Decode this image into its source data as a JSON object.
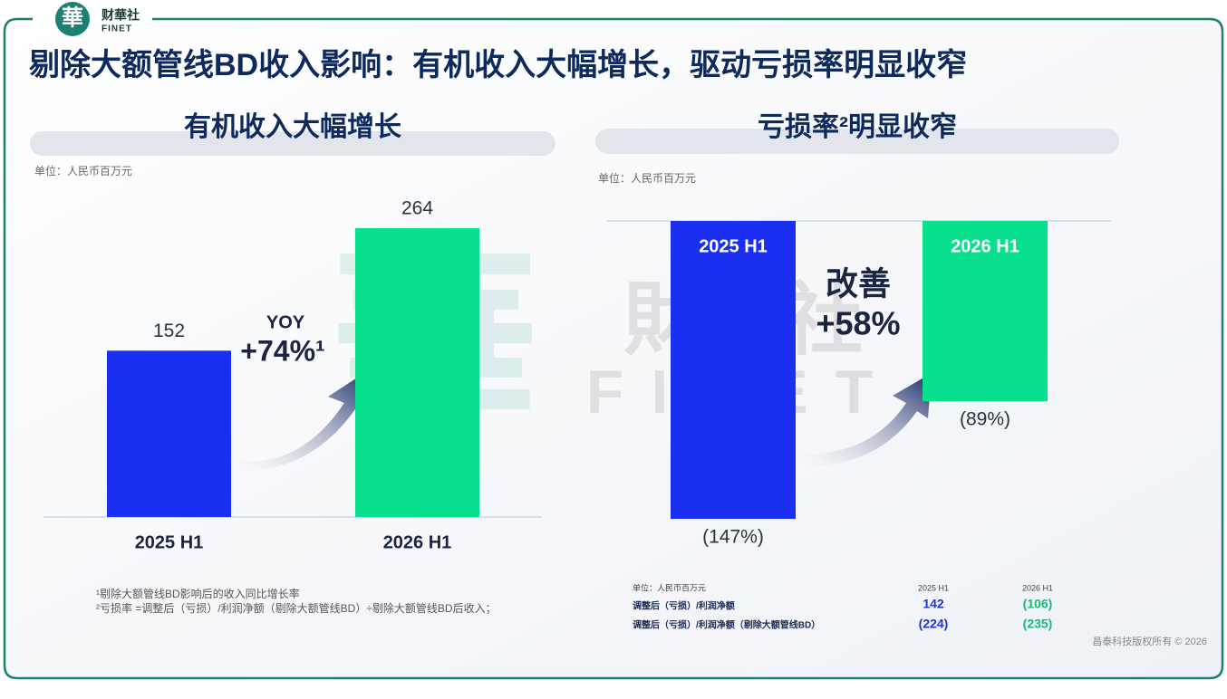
{
  "header": {
    "title": "剔除大额管线BD收入影响：有机收入大幅增长，驱动亏损率明显收窄"
  },
  "logo": {
    "mark": "華",
    "name": "财華社",
    "en": "FINET"
  },
  "watermark": {
    "cn": "財華社",
    "en": "FINET"
  },
  "chart_data": [
    {
      "type": "bar",
      "title": "有机收入大幅增长",
      "unit": "单位：人民币百万元",
      "categories": [
        "2025 H1",
        "2026 H1"
      ],
      "values": [
        152,
        264
      ],
      "colors": [
        "#1b2ff2",
        "#08e08d"
      ],
      "annotations": [
        "YOY",
        "+74%¹"
      ]
    },
    {
      "type": "bar",
      "title": "亏损率²明显收窄",
      "unit": "单位：人民币百万元",
      "categories": [
        "2025 H1",
        "2026 H1"
      ],
      "values": [
        -147,
        -89
      ],
      "value_labels": [
        "(147%)",
        "(89%)"
      ],
      "colors": [
        "#1b2ff2",
        "#08e08d"
      ],
      "annotations": [
        "改善",
        "+58%"
      ]
    }
  ],
  "footnotes": [
    "¹剔除大额管线BD影响后的收入同比增长率",
    "²亏损率 =调整后（亏损）/利润净额（剔除大额管线BD）÷剔除大额管线BD后收入；"
  ],
  "table": {
    "header": [
      "单位：人民币百万元",
      "2025 H1",
      "2026 H1"
    ],
    "rows": [
      [
        "调整后（亏损）/利润净额",
        "142",
        "(106)"
      ],
      [
        "调整后（亏损）/利润净额（剔除大额管线BD）",
        "(224)",
        "(235)"
      ]
    ]
  },
  "copyright": "昌泰科技版权所有 © 2026"
}
